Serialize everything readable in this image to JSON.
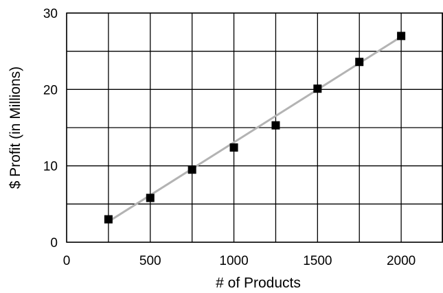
{
  "chart_data": {
    "type": "scatter",
    "xlabel": "# of Products",
    "ylabel": "$ Profit (in Millions)",
    "xlim": [
      0,
      2250
    ],
    "ylim": [
      0,
      30
    ],
    "x_ticks": [
      0,
      500,
      1000,
      1500,
      2000
    ],
    "y_ticks": [
      0,
      10,
      20,
      30
    ],
    "x_tick_labels": [
      "0",
      "500",
      "1000",
      "1500",
      "2000"
    ],
    "y_tick_labels": [
      "0",
      "10",
      "20",
      "30"
    ],
    "grid": true,
    "series": [
      {
        "x": [
          250,
          500,
          750,
          1000,
          1250,
          1500,
          1750,
          2000
        ],
        "y": [
          3.0,
          5.8,
          9.5,
          12.4,
          15.3,
          20.1,
          23.6,
          27.0
        ]
      }
    ],
    "trendline": {
      "x": [
        250,
        2000
      ],
      "y": [
        2.7,
        26.9
      ]
    },
    "colors": {
      "points": "#000000",
      "trendline": "#b3b3b3",
      "grid": "#000000"
    }
  }
}
